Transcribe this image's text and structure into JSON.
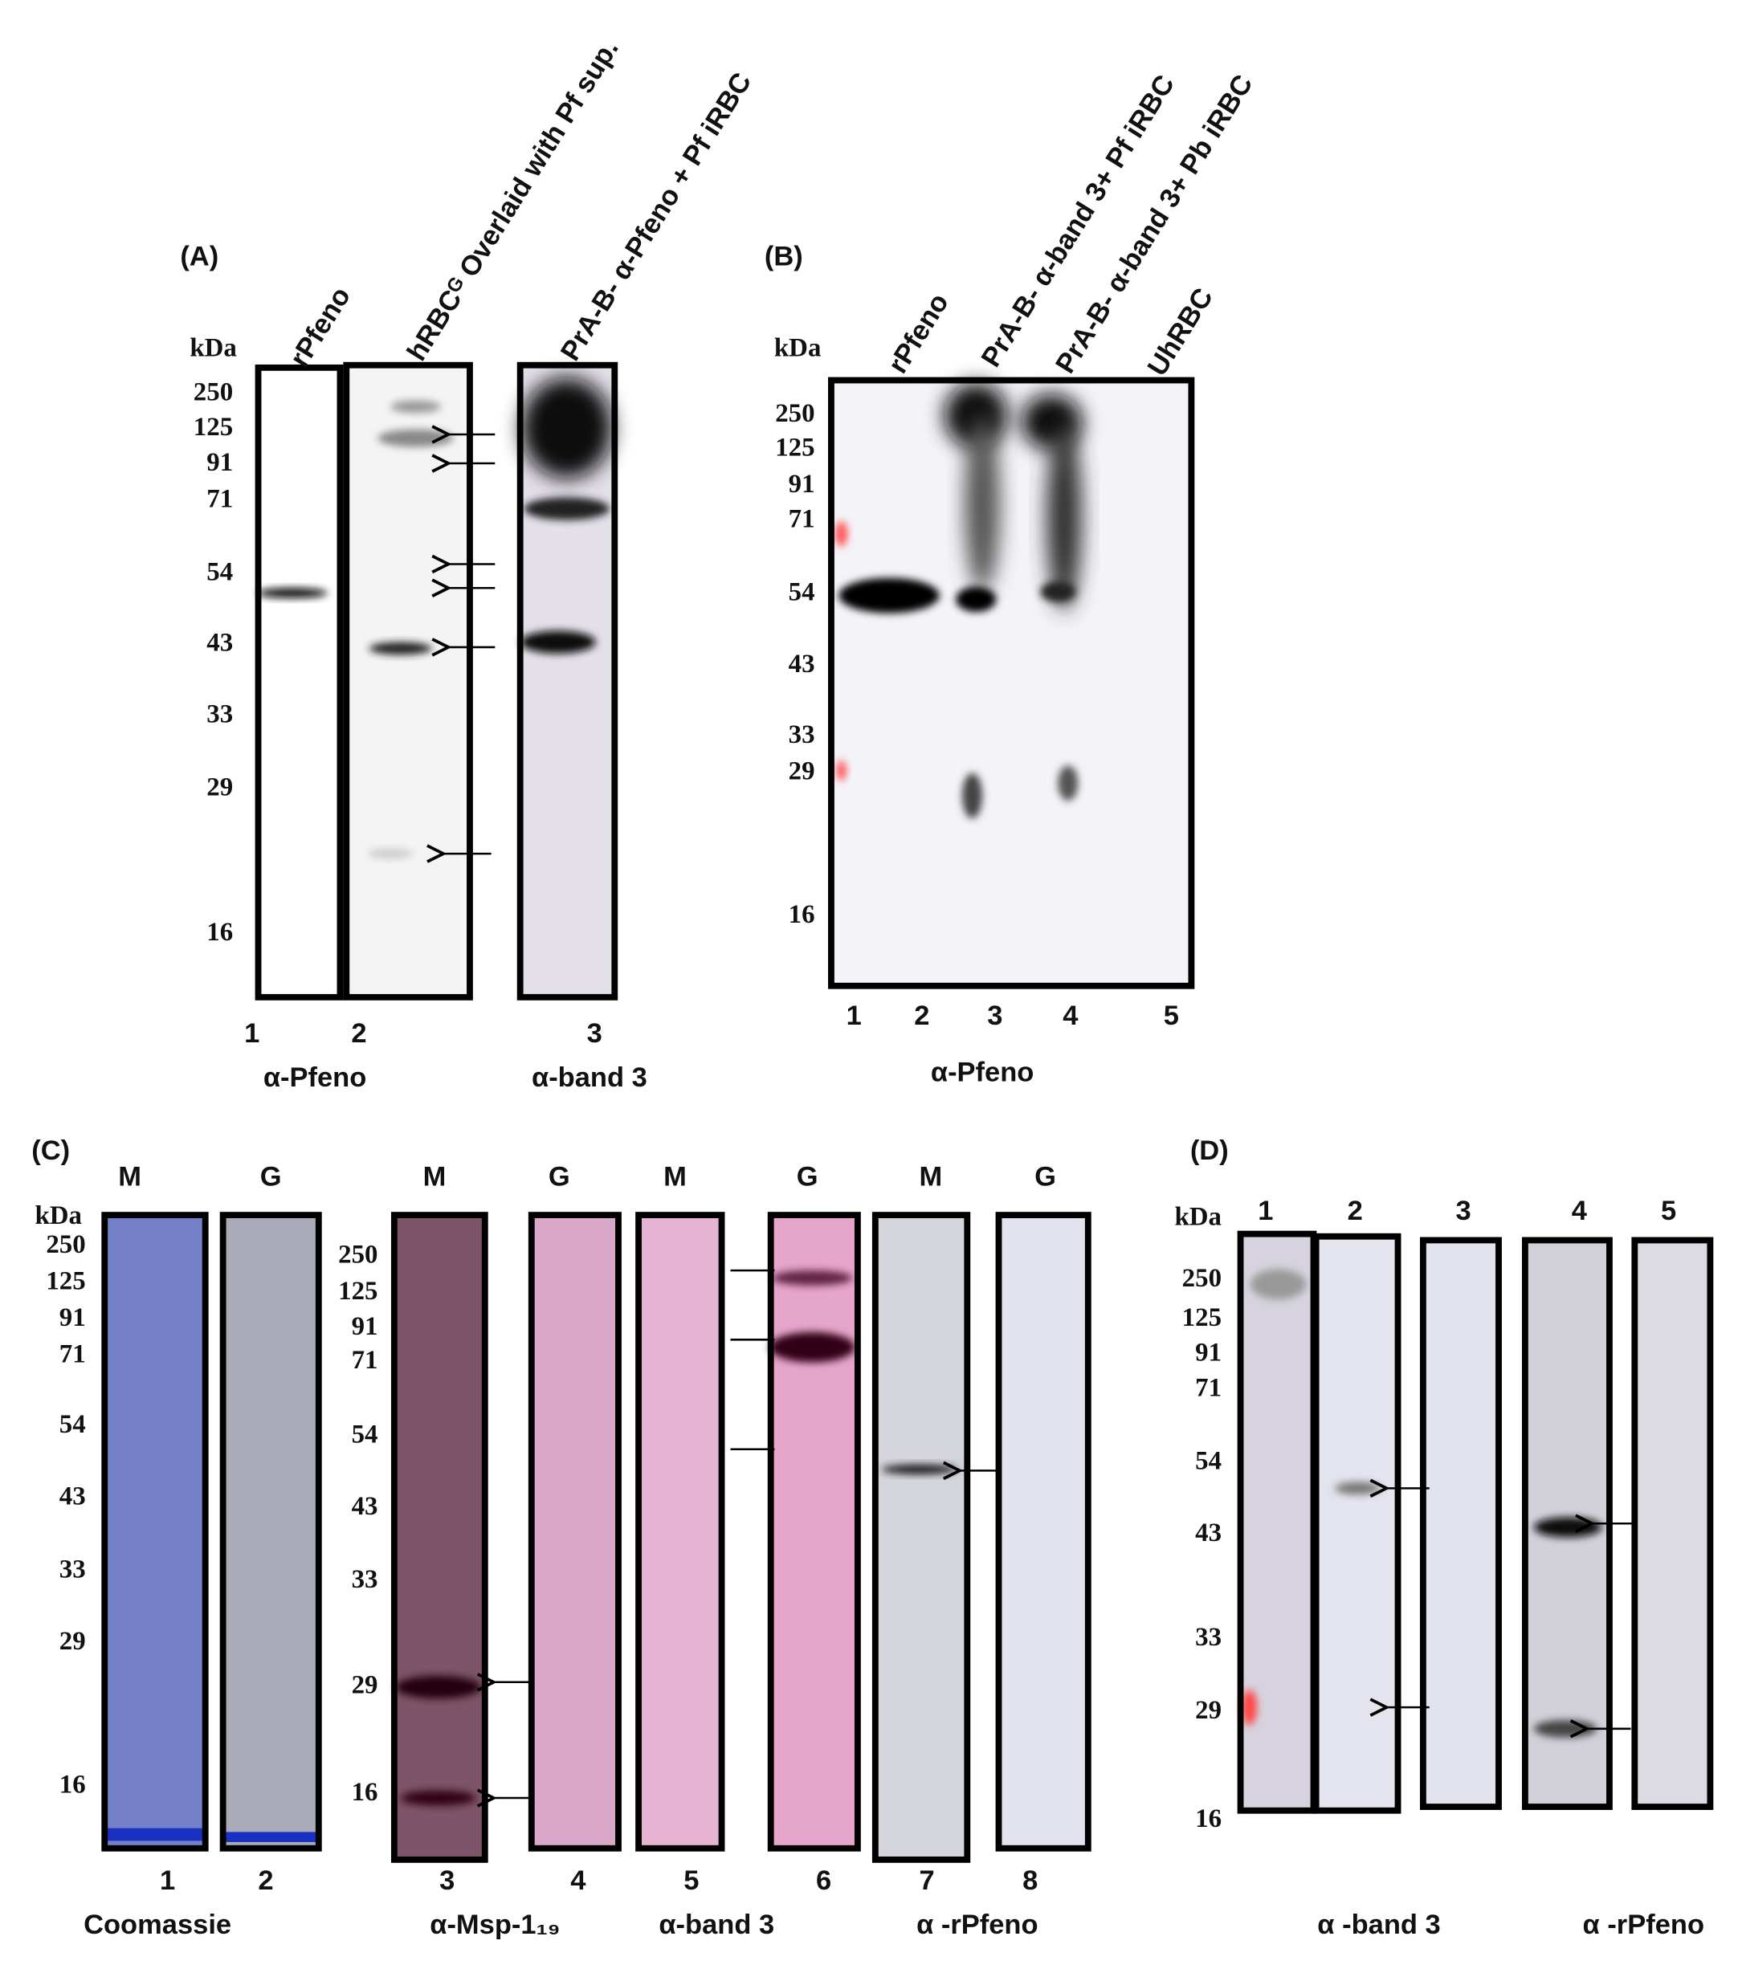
{
  "panel_a": {
    "label": "(A)",
    "unit": "kDa",
    "markers": [
      "250",
      "125",
      "91",
      "71",
      "54",
      "43",
      "33",
      "29",
      "16"
    ],
    "lane_headers": [
      "rPfeno",
      "hRBCᴳ Overlaid with Pf sup.",
      "PrA-B- α-Pfeno + Pf iRBC"
    ],
    "lane_numbers": [
      "1",
      "2",
      "3"
    ],
    "antibodies": [
      "α-Pfeno",
      "α-band 3"
    ]
  },
  "panel_b": {
    "label": "(B)",
    "unit": "kDa",
    "markers": [
      "250",
      "125",
      "91",
      "71",
      "54",
      "43",
      "33",
      "29",
      "16"
    ],
    "lane_headers": [
      "rPfeno",
      "PrA-B- α-band 3+ Pf iRBC",
      "PrA-B- α-band 3+ Pb iRBC",
      "UhRBC"
    ],
    "lane_numbers": [
      "1",
      "2",
      "3",
      "4",
      "5"
    ],
    "antibodies": [
      "α-Pfeno"
    ]
  },
  "panel_c": {
    "label": "(C)",
    "unit": "kDa",
    "markers_left": [
      "250",
      "125",
      "91",
      "71",
      "54",
      "43",
      "33",
      "29",
      "16"
    ],
    "markers_right": [
      "250",
      "125",
      "91",
      "71",
      "54",
      "43",
      "33",
      "29",
      "16"
    ],
    "lane_letters": [
      "M",
      "G",
      "M",
      "G",
      "M",
      "G",
      "M",
      "G"
    ],
    "lane_numbers": [
      "1",
      "2",
      "3",
      "4",
      "5",
      "6",
      "7",
      "8"
    ],
    "antibodies": [
      "Coomassie",
      "α-Msp-1₁₉",
      "α-band 3",
      "α -rPfeno"
    ]
  },
  "panel_d": {
    "label": "(D)",
    "unit": "kDa",
    "markers": [
      "250",
      "125",
      "91",
      "71",
      "54",
      "43",
      "33",
      "29",
      "16"
    ],
    "lane_numbers": [
      "1",
      "2",
      "3",
      "4",
      "5"
    ],
    "antibodies": [
      "α -band 3",
      "α -rPfeno"
    ]
  }
}
